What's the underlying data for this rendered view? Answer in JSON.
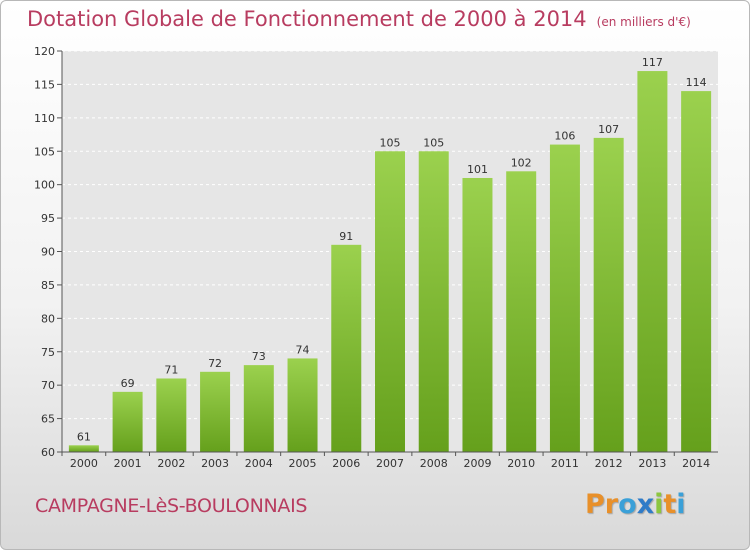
{
  "header": {
    "title": "Dotation Globale de Fonctionnement de 2000 à 2014",
    "subtitle": "(en milliers d'€)"
  },
  "footer": {
    "commune": "CAMPAGNE-LèS-BOULONNAIS",
    "logo_letters": [
      "P",
      "r",
      "o",
      "x",
      "i",
      "t",
      "i"
    ],
    "logo_colors": [
      "#e8902a",
      "#e8902a",
      "#3aa0d8",
      "#2e7bc8",
      "#8cc63f",
      "#e8902a",
      "#3aa0d8"
    ]
  },
  "chart_data": {
    "type": "bar",
    "categories": [
      "2000",
      "2001",
      "2002",
      "2003",
      "2004",
      "2005",
      "2006",
      "2007",
      "2008",
      "2009",
      "2010",
      "2011",
      "2012",
      "2013",
      "2014"
    ],
    "values": [
      61,
      69,
      71,
      72,
      73,
      74,
      91,
      105,
      105,
      101,
      102,
      106,
      107,
      117,
      114
    ],
    "title": "Dotation Globale de Fonctionnement de 2000 à 2014",
    "xlabel": "",
    "ylabel": "",
    "ylim": [
      60,
      120
    ],
    "yticks": [
      60,
      65,
      70,
      75,
      80,
      85,
      90,
      95,
      100,
      105,
      110,
      115,
      120
    ],
    "grid": true,
    "bar_color": "#8cc63f",
    "bar_color_dark": "#6aa21e"
  }
}
